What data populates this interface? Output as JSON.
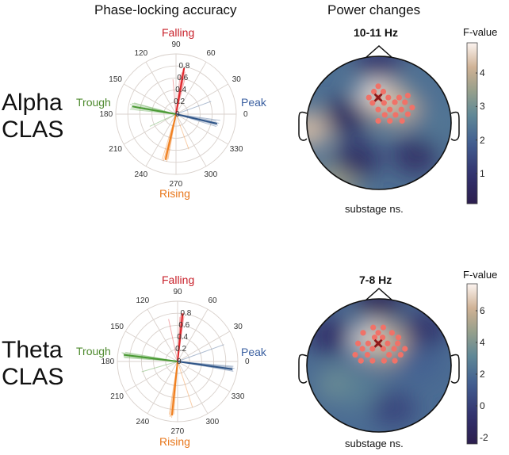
{
  "columns": {
    "left_title": "Phase-locking accuracy",
    "right_title": "Power changes"
  },
  "colors": {
    "falling": "#e0262b",
    "rising": "#f07f1e",
    "trough": "#4a9a34",
    "peak": "#2f5588",
    "falling_label": "#c8202a",
    "rising_label": "#e8771c",
    "trough_label": "#4e8a2e",
    "peak_label": "#3a5fa0",
    "electrode": "#f07268",
    "peak_electrode": "#8a1a1a"
  },
  "chart_data": [
    {
      "type": "polar",
      "row_label": [
        "Alpha",
        "CLAS"
      ],
      "title": "Phase-locking accuracy",
      "angle_ticks": [
        "0",
        "30",
        "60",
        "90",
        "120",
        "150",
        "180",
        "210",
        "240",
        "270",
        "300",
        "330"
      ],
      "angle_tick_values": [
        0,
        30,
        60,
        90,
        120,
        150,
        180,
        210,
        240,
        270,
        300,
        330
      ],
      "radial_ticks": [
        "0",
        "0.2",
        "0.4",
        "0.6",
        "0.8"
      ],
      "radial_tick_values": [
        0,
        0.2,
        0.4,
        0.6,
        0.8
      ],
      "rlim": [
        0,
        1.0
      ],
      "phase_labels": {
        "falling": "Falling",
        "rising": "Rising",
        "trough": "Trough",
        "peak": "Peak"
      },
      "series": [
        {
          "name": "Falling",
          "target_deg": 90,
          "mean": {
            "angle": 80,
            "length": 0.78
          },
          "individual": [
            [
              78,
              0.72
            ],
            [
              80,
              0.75
            ],
            [
              82,
              0.7
            ],
            [
              76,
              0.68
            ],
            [
              84,
              0.66
            ],
            [
              79,
              0.62
            ],
            [
              95,
              0.58
            ],
            [
              81,
              0.76
            ]
          ]
        },
        {
          "name": "Trough",
          "target_deg": 180,
          "mean": {
            "angle": 170,
            "length": 0.74
          },
          "individual": [
            [
              168,
              0.78
            ],
            [
              172,
              0.76
            ],
            [
              166,
              0.75
            ],
            [
              170,
              0.7
            ],
            [
              174,
              0.77
            ],
            [
              165,
              0.72
            ],
            [
              205,
              0.48
            ]
          ]
        },
        {
          "name": "Peak",
          "target_deg": 0,
          "mean": {
            "angle": -13,
            "length": 0.7
          },
          "individual": [
            [
              -12,
              0.73
            ],
            [
              -10,
              0.68
            ],
            [
              -15,
              0.72
            ],
            [
              -8,
              0.74
            ],
            [
              -17,
              0.7
            ],
            [
              -14,
              0.66
            ],
            [
              20,
              0.62
            ]
          ]
        },
        {
          "name": "Rising",
          "target_deg": 270,
          "mean": {
            "angle": 257,
            "length": 0.78
          },
          "individual": [
            [
              255,
              0.8
            ],
            [
              258,
              0.78
            ],
            [
              260,
              0.76
            ],
            [
              256,
              0.74
            ],
            [
              253,
              0.79
            ],
            [
              259,
              0.8
            ],
            [
              290,
              0.62
            ]
          ]
        }
      ]
    },
    {
      "type": "heatmap",
      "subtype": "topoplot",
      "title": "10-11 Hz",
      "colorbar_label": "F-value",
      "colorbar_ticks": [
        "1",
        "2",
        "3",
        "4"
      ],
      "colorbar_tick_values": [
        1,
        2,
        3,
        4
      ],
      "clim": [
        0.1,
        4.9
      ],
      "note": "substage ns.",
      "hotspots": [
        {
          "x": 0.0,
          "y": 0.38,
          "value": 4.8
        },
        {
          "x": 0.22,
          "y": 0.25,
          "value": 4.2
        },
        {
          "x": -0.98,
          "y": -0.1,
          "value": 4.3
        },
        {
          "x": -0.6,
          "y": -0.9,
          "value": 3.6
        },
        {
          "x": 0.8,
          "y": 0.0,
          "value": 2.4
        },
        {
          "x": -0.45,
          "y": 0.1,
          "value": 0.5
        },
        {
          "x": -0.3,
          "y": -0.55,
          "value": 0.6
        },
        {
          "x": 0.5,
          "y": -0.5,
          "value": 0.7
        },
        {
          "x": 0.0,
          "y": 0.9,
          "value": 0.9
        }
      ],
      "significant_electrodes": [
        [
          -0.01,
          0.55
        ],
        [
          -0.07,
          0.47
        ],
        [
          0.06,
          0.47
        ],
        [
          -0.14,
          0.38
        ],
        [
          0.13,
          0.38
        ],
        [
          0.28,
          0.38
        ],
        [
          0.4,
          0.41
        ],
        [
          -0.09,
          0.3
        ],
        [
          0.07,
          0.3
        ],
        [
          0.22,
          0.31
        ],
        [
          0.36,
          0.31
        ],
        [
          -0.01,
          0.2
        ],
        [
          0.15,
          0.2
        ],
        [
          0.31,
          0.2
        ],
        [
          0.46,
          0.23
        ],
        [
          0.08,
          0.12
        ],
        [
          0.23,
          0.12
        ],
        [
          0.4,
          0.13
        ],
        [
          -0.01,
          0.03
        ],
        [
          0.15,
          0.03
        ],
        [
          0.32,
          0.03
        ]
      ],
      "peak_electrode": [
        -0.01,
        0.38
      ]
    },
    {
      "type": "polar",
      "row_label": [
        "Theta",
        "CLAS"
      ],
      "title": "Phase-locking accuracy",
      "angle_ticks": [
        "0",
        "30",
        "60",
        "90",
        "120",
        "150",
        "180",
        "210",
        "240",
        "270",
        "300",
        "330"
      ],
      "angle_tick_values": [
        0,
        30,
        60,
        90,
        120,
        150,
        180,
        210,
        240,
        270,
        300,
        330
      ],
      "radial_ticks": [
        "0",
        "0.2",
        "0.4",
        "0.6",
        "0.8"
      ],
      "radial_tick_values": [
        0,
        0.2,
        0.4,
        0.6,
        0.8
      ],
      "rlim": [
        0,
        1.0
      ],
      "phase_labels": {
        "falling": "Falling",
        "rising": "Rising",
        "trough": "Trough",
        "peak": "Peak"
      },
      "series": [
        {
          "name": "Falling",
          "target_deg": 90,
          "mean": {
            "angle": 84,
            "length": 0.8
          },
          "individual": [
            [
              83,
              0.82
            ],
            [
              85,
              0.8
            ],
            [
              86,
              0.78
            ],
            [
              82,
              0.76
            ],
            [
              87,
              0.74
            ],
            [
              84,
              0.79
            ],
            [
              102,
              0.72
            ]
          ]
        },
        {
          "name": "Trough",
          "target_deg": 180,
          "mean": {
            "angle": 173,
            "length": 0.9
          },
          "individual": [
            [
              172,
              0.92
            ],
            [
              174,
              0.9
            ],
            [
              170,
              0.88
            ],
            [
              175,
              0.9
            ],
            [
              171,
              0.94
            ],
            [
              176,
              0.89
            ],
            [
              196,
              0.62
            ]
          ]
        },
        {
          "name": "Peak",
          "target_deg": 0,
          "mean": {
            "angle": -8,
            "length": 0.92
          },
          "individual": [
            [
              -7,
              0.95
            ],
            [
              -9,
              0.93
            ],
            [
              -6,
              0.92
            ],
            [
              -10,
              0.94
            ],
            [
              -8,
              0.9
            ],
            [
              -5,
              0.93
            ],
            [
              20,
              0.82
            ]
          ]
        },
        {
          "name": "Rising",
          "target_deg": 270,
          "mean": {
            "angle": 264,
            "length": 0.9
          },
          "individual": [
            [
              263,
              0.92
            ],
            [
              265,
              0.9
            ],
            [
              266,
              0.88
            ],
            [
              262,
              0.93
            ],
            [
              264,
              0.94
            ],
            [
              261,
              0.89
            ],
            [
              288,
              0.8
            ]
          ]
        }
      ]
    },
    {
      "type": "heatmap",
      "subtype": "topoplot",
      "title": "7-8 Hz",
      "colorbar_label": "F-value",
      "colorbar_ticks": [
        "-2",
        "0",
        "2",
        "4",
        "6"
      ],
      "colorbar_tick_values": [
        -2,
        0,
        2,
        4,
        6
      ],
      "clim": [
        -2.4,
        7.7
      ],
      "note": "substage ns.",
      "hotspots": [
        {
          "x": -0.05,
          "y": 0.38,
          "value": 7.5
        },
        {
          "x": 0.12,
          "y": 0.3,
          "value": 6.0
        },
        {
          "x": -0.55,
          "y": -0.28,
          "value": 3.5
        },
        {
          "x": -0.2,
          "y": -0.4,
          "value": 2.8
        },
        {
          "x": 0.55,
          "y": 0.05,
          "value": 1.5
        },
        {
          "x": -0.7,
          "y": 0.45,
          "value": -1.0
        },
        {
          "x": 0.65,
          "y": 0.55,
          "value": -0.8
        },
        {
          "x": 0.2,
          "y": -0.65,
          "value": 0.2
        },
        {
          "x": 0.0,
          "y": 0.95,
          "value": -2.0
        }
      ],
      "significant_electrodes": [
        [
          -0.08,
          0.57
        ],
        [
          0.06,
          0.57
        ],
        [
          -0.22,
          0.49
        ],
        [
          -0.01,
          0.49
        ],
        [
          0.18,
          0.49
        ],
        [
          -0.06,
          0.42
        ],
        [
          0.05,
          0.42
        ],
        [
          0.27,
          0.42
        ],
        [
          -0.29,
          0.33
        ],
        [
          -0.15,
          0.33
        ],
        [
          0.12,
          0.33
        ],
        [
          0.26,
          0.33
        ],
        [
          -0.23,
          0.25
        ],
        [
          -0.09,
          0.25
        ],
        [
          0.06,
          0.25
        ],
        [
          0.21,
          0.25
        ],
        [
          0.36,
          0.25
        ],
        [
          -0.33,
          0.16
        ],
        [
          -0.16,
          0.16
        ],
        [
          0.14,
          0.16
        ],
        [
          0.3,
          0.16
        ],
        [
          -0.25,
          0.07
        ],
        [
          -0.09,
          0.07
        ],
        [
          0.07,
          0.07
        ],
        [
          0.22,
          0.07
        ]
      ],
      "peak_electrode": [
        -0.01,
        0.33
      ]
    }
  ]
}
